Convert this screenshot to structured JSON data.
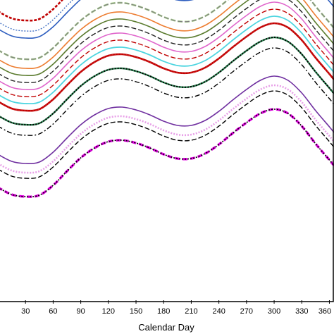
{
  "chart_data": {
    "type": "line",
    "xlabel": "Calendar Day",
    "xlim": [
      0,
      365
    ],
    "x_ticks": [
      30,
      60,
      90,
      120,
      150,
      180,
      210,
      240,
      270,
      300,
      330,
      360
    ],
    "x_tick_labels": [
      "30",
      "60",
      "90",
      "120",
      "150",
      "180",
      "210",
      "240",
      "270",
      "300",
      "330",
      "360"
    ],
    "x": [
      0,
      15,
      30,
      45,
      60,
      75,
      90,
      105,
      120,
      135,
      150,
      165,
      180,
      195,
      210,
      225,
      240,
      255,
      270,
      285,
      300,
      315,
      330,
      345,
      360,
      365
    ],
    "grid": false,
    "legend": "none",
    "series": [
      {
        "color": "#c00000",
        "dash": "4,2",
        "width": 2.6,
        "values": [
          410,
          400,
          397,
          399,
          413,
          433,
          452,
          466,
          474,
          476,
          472,
          465,
          456,
          450,
          450,
          457,
          470,
          486,
          502,
          515,
          521,
          515,
          497,
          472,
          449,
          441
        ]
      },
      {
        "color": "#4472c4",
        "dash": "2,2",
        "width": 1.4,
        "values": [
          395,
          385,
          382,
          384,
          398,
          418,
          437,
          451,
          460,
          462,
          458,
          451,
          442,
          436,
          436,
          443,
          456,
          472,
          487,
          500,
          506,
          500,
          482,
          457,
          434,
          426
        ]
      },
      {
        "color": "#2e5ebf",
        "dash": "",
        "width": 1.6,
        "values": [
          385,
          375,
          372,
          374,
          388,
          408,
          427,
          441,
          450,
          452,
          448,
          441,
          432,
          426,
          426,
          433,
          446,
          462,
          477,
          490,
          496,
          490,
          472,
          447,
          424,
          416
        ]
      },
      {
        "color": "#a9d18e",
        "dash": "7,3",
        "width": 2.6,
        "values": [
          355,
          345,
          342,
          344,
          358,
          378,
          397,
          411,
          420,
          422,
          418,
          411,
          402,
          396,
          396,
          403,
          416,
          432,
          447,
          460,
          466,
          460,
          442,
          417,
          394,
          386
        ]
      },
      {
        "color": "#7f7f7f",
        "dash": "7,3",
        "width": 1.2,
        "values": [
          355,
          345,
          342,
          344,
          358,
          378,
          397,
          411,
          420,
          422,
          418,
          411,
          402,
          396,
          396,
          403,
          416,
          432,
          447,
          460,
          466,
          460,
          442,
          417,
          394,
          386
        ]
      },
      {
        "color": "#ed7d31",
        "dash": "",
        "width": 1.6,
        "values": [
          342,
          332,
          329,
          331,
          345,
          365,
          384,
          398,
          407,
          409,
          405,
          398,
          389,
          383,
          383,
          390,
          403,
          419,
          434,
          447,
          453,
          447,
          429,
          404,
          381,
          373
        ]
      },
      {
        "color": "#5b7c2f",
        "dash": "",
        "width": 1.6,
        "values": [
          332,
          322,
          319,
          321,
          335,
          355,
          374,
          388,
          397,
          399,
          395,
          388,
          379,
          373,
          373,
          380,
          393,
          409,
          424,
          437,
          443,
          437,
          419,
          394,
          371,
          363
        ]
      },
      {
        "color": "#222222",
        "dash": "7,3",
        "width": 1.4,
        "values": [
          322,
          312,
          309,
          311,
          325,
          345,
          364,
          378,
          387,
          389,
          385,
          378,
          369,
          363,
          363,
          370,
          383,
          399,
          414,
          427,
          433,
          427,
          409,
          384,
          361,
          353
        ]
      },
      {
        "color": "#e066cc",
        "dash": "",
        "width": 1.6,
        "values": [
          312,
          302,
          299,
          301,
          315,
          335,
          354,
          368,
          377,
          379,
          375,
          368,
          359,
          353,
          353,
          360,
          373,
          389,
          404,
          417,
          423,
          417,
          399,
          374,
          351,
          343
        ]
      },
      {
        "color": "#c00000",
        "dash": "7,3",
        "width": 1.4,
        "values": [
          302,
          292,
          289,
          291,
          305,
          325,
          344,
          358,
          367,
          369,
          365,
          358,
          349,
          343,
          343,
          350,
          363,
          379,
          394,
          407,
          413,
          407,
          389,
          364,
          341,
          333
        ]
      },
      {
        "color": "#4dd5e0",
        "dash": "",
        "width": 1.8,
        "values": [
          292,
          282,
          279,
          281,
          295,
          315,
          334,
          348,
          357,
          359,
          355,
          348,
          339,
          333,
          333,
          340,
          353,
          369,
          384,
          397,
          403,
          397,
          379,
          354,
          331,
          323
        ]
      },
      {
        "color": "#c00000",
        "dash": "",
        "width": 2.6,
        "values": [
          282,
          272,
          269,
          271,
          285,
          305,
          324,
          338,
          347,
          349,
          345,
          338,
          329,
          323,
          323,
          330,
          343,
          359,
          374,
          387,
          393,
          387,
          369,
          344,
          321,
          313
        ]
      },
      {
        "color": "#d02020",
        "dash": "2,2",
        "width": 1.4,
        "values": [
          282,
          272,
          269,
          271,
          285,
          305,
          324,
          338,
          347,
          349,
          345,
          338,
          329,
          323,
          323,
          330,
          343,
          359,
          374,
          387,
          393,
          387,
          369,
          344,
          321,
          313
        ]
      },
      {
        "color": "#2e8b57",
        "dash": "",
        "width": 2.4,
        "values": [
          262,
          252,
          249,
          251,
          265,
          285,
          304,
          318,
          327,
          329,
          325,
          318,
          309,
          303,
          303,
          310,
          323,
          339,
          354,
          367,
          373,
          367,
          349,
          324,
          301,
          293
        ]
      },
      {
        "color": "#000000",
        "dash": "2,2",
        "width": 2.0,
        "values": [
          262,
          252,
          249,
          251,
          265,
          285,
          304,
          318,
          327,
          329,
          325,
          318,
          309,
          303,
          303,
          310,
          323,
          339,
          354,
          367,
          373,
          367,
          349,
          324,
          301,
          293
        ]
      },
      {
        "color": "#000000",
        "dash": "7,3,2,3",
        "width": 1.4,
        "values": [
          247,
          237,
          234,
          236,
          250,
          270,
          289,
          303,
          312,
          314,
          310,
          303,
          294,
          288,
          288,
          295,
          308,
          324,
          339,
          352,
          358,
          352,
          334,
          309,
          286,
          278
        ]
      },
      {
        "color": "#7030a0",
        "dash": "",
        "width": 1.6,
        "values": [
          207,
          197,
          194,
          196,
          210,
          230,
          249,
          263,
          272,
          274,
          270,
          263,
          254,
          248,
          248,
          255,
          268,
          284,
          299,
          312,
          318,
          312,
          294,
          269,
          246,
          238
        ]
      },
      {
        "color": "#e8a0e8",
        "dash": "2,2",
        "width": 2.6,
        "values": [
          194,
          184,
          181,
          183,
          197,
          217,
          236,
          250,
          259,
          261,
          257,
          250,
          241,
          235,
          235,
          242,
          255,
          271,
          286,
          299,
          305,
          299,
          281,
          256,
          233,
          225
        ]
      },
      {
        "color": "#000000",
        "dash": "7,3",
        "width": 1.4,
        "values": [
          186,
          176,
          173,
          175,
          189,
          209,
          228,
          242,
          251,
          253,
          249,
          242,
          233,
          227,
          227,
          234,
          247,
          263,
          278,
          291,
          297,
          291,
          273,
          248,
          225,
          217
        ]
      },
      {
        "color": "#e000e0",
        "dash": "7,4",
        "width": 3.4,
        "values": [
          160,
          150,
          147,
          149,
          163,
          183,
          202,
          216,
          225,
          227,
          223,
          216,
          207,
          201,
          201,
          208,
          221,
          237,
          252,
          265,
          271,
          265,
          247,
          222,
          199,
          191
        ]
      },
      {
        "color": "#000000",
        "dash": "2,2",
        "width": 1.6,
        "values": [
          160,
          150,
          147,
          149,
          163,
          183,
          202,
          216,
          225,
          227,
          223,
          216,
          207,
          201,
          201,
          208,
          221,
          237,
          252,
          265,
          271,
          265,
          247,
          222,
          199,
          191
        ]
      }
    ]
  }
}
